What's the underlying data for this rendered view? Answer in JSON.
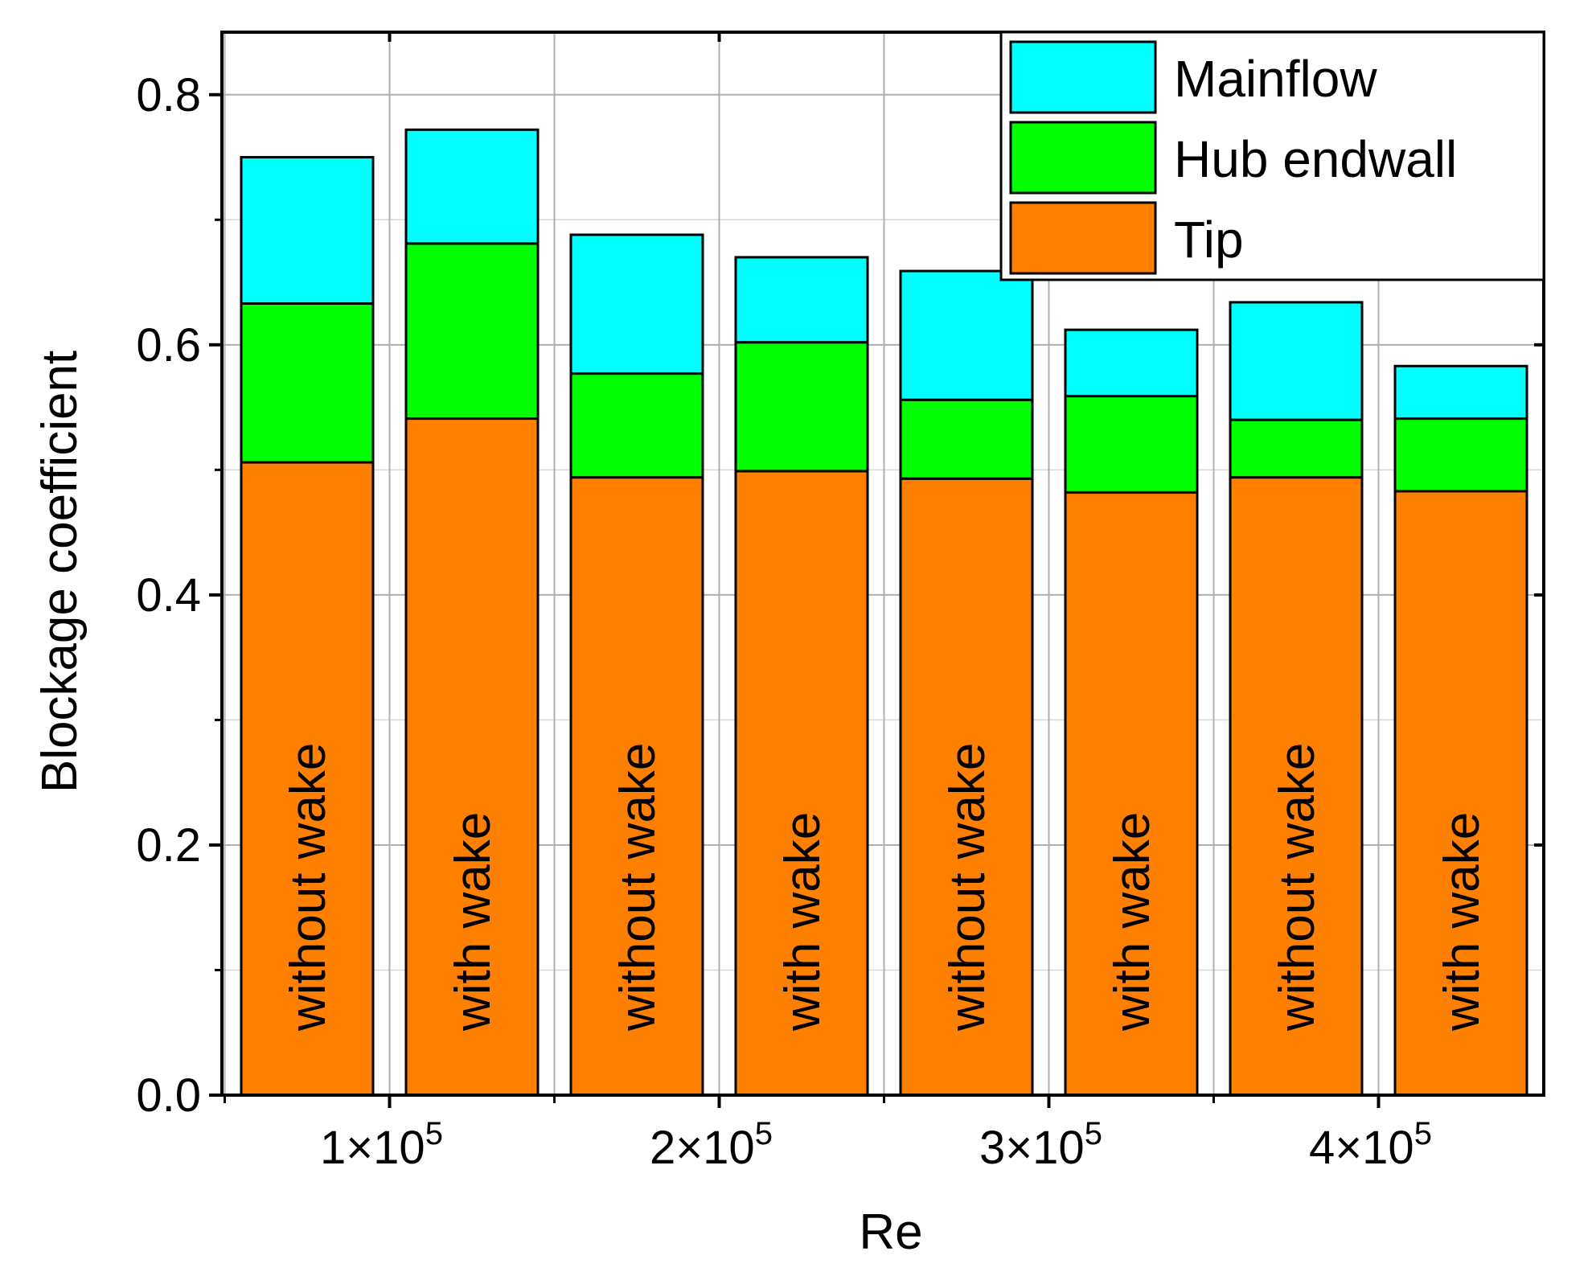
{
  "chart_data": {
    "type": "bar",
    "stacked": true,
    "xlabel": "Re",
    "ylabel": "Blockage coefficient",
    "ylim": [
      0,
      0.85
    ],
    "yticks": [
      {
        "value": 0.0,
        "label": "0.0"
      },
      {
        "value": 0.2,
        "label": "0.2"
      },
      {
        "value": 0.4,
        "label": "0.4"
      },
      {
        "value": 0.6,
        "label": "0.6"
      },
      {
        "value": 0.8,
        "label": "0.8"
      }
    ],
    "xtick_labels": [
      {
        "between_bars": [
          0,
          1
        ],
        "base": "1×10",
        "exp": "5"
      },
      {
        "between_bars": [
          2,
          3
        ],
        "base": "2×10",
        "exp": "5"
      },
      {
        "between_bars": [
          4,
          5
        ],
        "base": "3×10",
        "exp": "5"
      },
      {
        "between_bars": [
          6,
          7
        ],
        "base": "4×10",
        "exp": "5"
      }
    ],
    "categories": [
      "without wake",
      "with wake",
      "without wake",
      "with wake",
      "without wake",
      "with wake",
      "without wake",
      "with wake"
    ],
    "series": [
      {
        "name": "Tip",
        "color": "#ff8000",
        "values": [
          0.506,
          0.541,
          0.494,
          0.499,
          0.493,
          0.482,
          0.494,
          0.483
        ]
      },
      {
        "name": "Hub endwall",
        "color": "#00ff00",
        "values": [
          0.127,
          0.14,
          0.083,
          0.103,
          0.063,
          0.077,
          0.046,
          0.058
        ]
      },
      {
        "name": "Mainflow",
        "color": "#00ffff",
        "values": [
          0.117,
          0.091,
          0.111,
          0.068,
          0.103,
          0.053,
          0.094,
          0.042
        ]
      }
    ],
    "legend": {
      "position": "top-right",
      "order": [
        "Mainflow",
        "Hub endwall",
        "Tip"
      ]
    },
    "grid": true
  }
}
